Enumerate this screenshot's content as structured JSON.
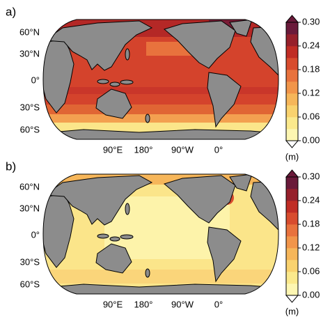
{
  "panels": [
    {
      "label": "a)",
      "lat_labels": [
        "60°N",
        "30°N",
        "0°",
        "30°S",
        "60°S"
      ],
      "lon_labels": [
        "90°E",
        "180°",
        "90°W",
        "0°"
      ],
      "colorbar": {
        "unit": "(m)",
        "lim": [
          0,
          0.3
        ],
        "ticks": [
          {
            "value": 0,
            "label": "0.00"
          },
          {
            "value": 0.06,
            "label": "0.06"
          },
          {
            "value": 0.12,
            "label": "0.12"
          },
          {
            "value": 0.18,
            "label": "0.18"
          },
          {
            "value": 0.24,
            "label": "0.24"
          },
          {
            "value": 0.3,
            "label": "0.30"
          }
        ],
        "colors": [
          "#fdf6b2",
          "#fbe98c",
          "#f9d26e",
          "#f6b65a",
          "#f1954a",
          "#e8723d",
          "#d84c2e",
          "#c02d25",
          "#96202b",
          "#6a1a3a"
        ]
      }
    },
    {
      "label": "b)",
      "lat_labels": [
        "60°N",
        "30°N",
        "0°",
        "30°S",
        "60°S"
      ],
      "lon_labels": [
        "90°E",
        "180°",
        "90°W",
        "0°"
      ],
      "colorbar": {
        "unit": "(m)",
        "lim": [
          0,
          0.3
        ],
        "ticks": [
          {
            "value": 0,
            "label": "0.00"
          },
          {
            "value": 0.06,
            "label": "0.06"
          },
          {
            "value": 0.12,
            "label": "0.12"
          },
          {
            "value": 0.18,
            "label": "0.18"
          },
          {
            "value": 0.24,
            "label": "0.24"
          },
          {
            "value": 0.3,
            "label": "0.30"
          }
        ],
        "colors": [
          "#fdf6b2",
          "#fbe98c",
          "#f9d26e",
          "#f6b65a",
          "#f1954a",
          "#e8723d",
          "#d84c2e",
          "#c02d25",
          "#96202b",
          "#6a1a3a"
        ]
      }
    }
  ]
}
